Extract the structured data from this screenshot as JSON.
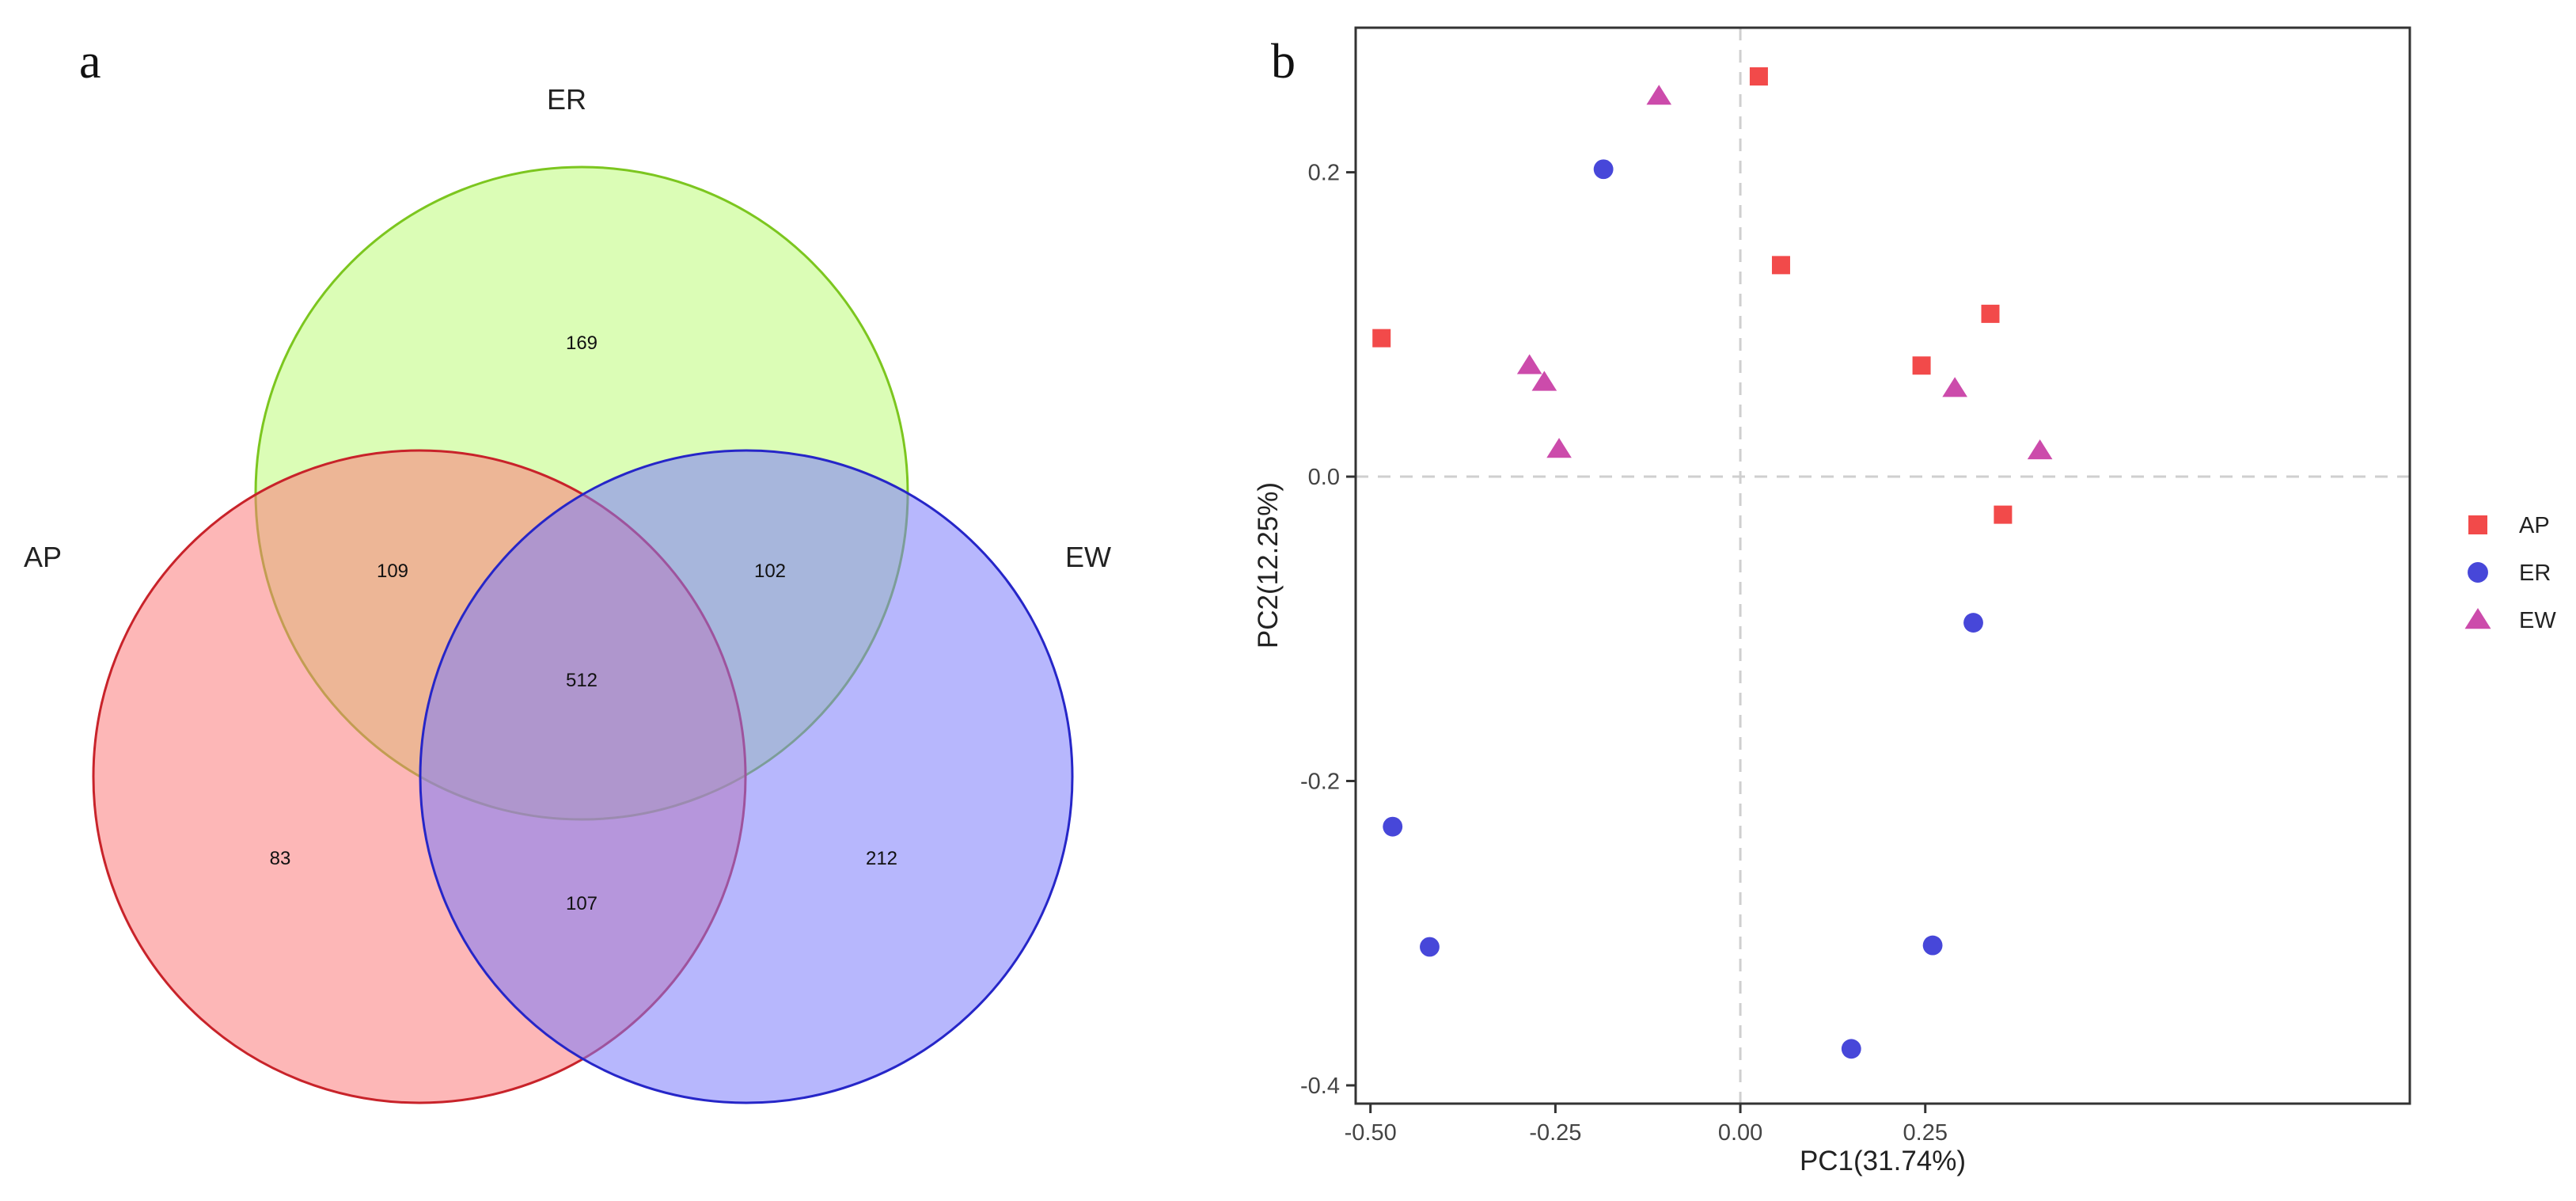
{
  "chart_data": [
    {
      "type": "venn",
      "panel_label": "a",
      "sets": [
        {
          "id": "ER",
          "label": "ER",
          "color": "#7cc61f",
          "fill": "#bdfc7a"
        },
        {
          "id": "AP",
          "label": "AP",
          "color": "#c8232a",
          "fill": "#fb7c7c"
        },
        {
          "id": "EW",
          "label": "EW",
          "color": "#2626c8",
          "fill": "#7c7cfb"
        }
      ],
      "regions": [
        {
          "sets": [
            "ER"
          ],
          "value": 169
        },
        {
          "sets": [
            "AP",
            "ER"
          ],
          "value": 109
        },
        {
          "sets": [
            "ER",
            "EW"
          ],
          "value": 102
        },
        {
          "sets": [
            "AP",
            "ER",
            "EW"
          ],
          "value": 512
        },
        {
          "sets": [
            "AP"
          ],
          "value": 83
        },
        {
          "sets": [
            "AP",
            "EW"
          ],
          "value": 107
        },
        {
          "sets": [
            "EW"
          ],
          "value": 212
        }
      ]
    },
    {
      "type": "scatter",
      "panel_label": "b",
      "xlabel": "PC1(31.74%)",
      "ylabel": "PC2(12.25%)",
      "xlim": [
        -0.52,
        0.905
      ],
      "ylim": [
        -0.412,
        0.295
      ],
      "xticks": [
        {
          "value": -0.5,
          "label": "-0.50"
        },
        {
          "value": -0.25,
          "label": "-0.25"
        },
        {
          "value": 0,
          "label": "0.00"
        },
        {
          "value": 0.25,
          "label": "0.25"
        }
      ],
      "yticks": [
        {
          "value": 0.2,
          "label": "0.2"
        },
        {
          "value": 0,
          "label": "0.0"
        },
        {
          "value": -0.2,
          "label": "-0.2"
        },
        {
          "value": -0.4,
          "label": "-0.4"
        }
      ],
      "zero_lines": true,
      "legend_position": "right",
      "series": [
        {
          "name": "AP",
          "shape": "square",
          "color": "#f24a4a",
          "points": [
            [
              0.025,
              0.263
            ],
            [
              0.055,
              0.139
            ],
            [
              0.338,
              0.107
            ],
            [
              0.245,
              0.073
            ],
            [
              0.355,
              -0.025
            ],
            [
              -0.485,
              0.091
            ]
          ]
        },
        {
          "name": "ER",
          "shape": "circle",
          "color": "#4747d9",
          "points": [
            [
              -0.185,
              0.202
            ],
            [
              -0.47,
              -0.23
            ],
            [
              -0.42,
              -0.309
            ],
            [
              0.315,
              -0.096
            ],
            [
              0.26,
              -0.308
            ],
            [
              0.15,
              -0.376
            ]
          ]
        },
        {
          "name": "EW",
          "shape": "triangle",
          "color": "#cc4bab",
          "points": [
            [
              -0.11,
              0.25
            ],
            [
              -0.285,
              0.073
            ],
            [
              -0.265,
              0.062
            ],
            [
              -0.245,
              0.018
            ],
            [
              0.29,
              0.058
            ],
            [
              0.405,
              0.017
            ]
          ]
        }
      ]
    }
  ]
}
